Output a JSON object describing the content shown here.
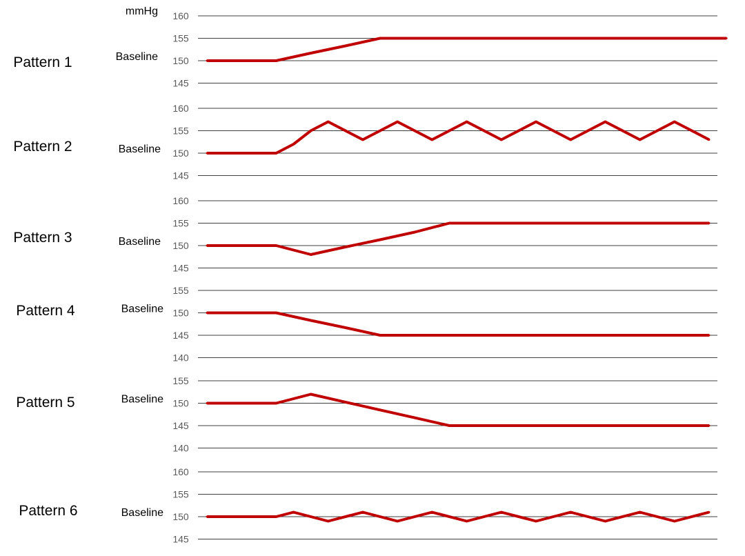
{
  "chart_data": [
    {
      "type": "line",
      "title": "Pattern 1",
      "unit_label": "mmHg",
      "baseline_label": "Baseline",
      "baseline_value": 150,
      "yticks": [
        160,
        155,
        150,
        145
      ],
      "ylim": [
        145,
        160
      ],
      "x": [
        0,
        1,
        2,
        3,
        4,
        5,
        6,
        7,
        8,
        9,
        10,
        11,
        12,
        13,
        14,
        15
      ],
      "series": [
        {
          "values": [
            150,
            150,
            150,
            151.7,
            153.3,
            155,
            155,
            155,
            155,
            155,
            155,
            155,
            155,
            155,
            155,
            155
          ]
        }
      ]
    },
    {
      "type": "line",
      "title": "Pattern 2",
      "baseline_label": "Baseline",
      "baseline_value": 150,
      "yticks": [
        160,
        155,
        150,
        145
      ],
      "ylim": [
        145,
        160
      ],
      "x": [
        0,
        2,
        2.5,
        3,
        3.5,
        4.5,
        5.5,
        6.5,
        7.5,
        8.5,
        9.5,
        10.5,
        11.5,
        12.5,
        13.5,
        14.5
      ],
      "series": [
        {
          "values": [
            150,
            150,
            152,
            155,
            157,
            153,
            157,
            153,
            157,
            153,
            157,
            153,
            157,
            153,
            157,
            153
          ]
        }
      ]
    },
    {
      "type": "line",
      "title": "Pattern 3",
      "baseline_label": "Baseline",
      "baseline_value": 150,
      "yticks": [
        160,
        155,
        150,
        145
      ],
      "ylim": [
        145,
        160
      ],
      "x": [
        0,
        2,
        3,
        4,
        5,
        6,
        7,
        8,
        9,
        10,
        11,
        12,
        13,
        14,
        14.5
      ],
      "series": [
        {
          "values": [
            150,
            150,
            148,
            149.7,
            151.3,
            153,
            155,
            155,
            155,
            155,
            155,
            155,
            155,
            155,
            155
          ]
        }
      ]
    },
    {
      "type": "line",
      "title": "Pattern 4",
      "baseline_label": "Baseline",
      "baseline_value": 150,
      "yticks": [
        155,
        150,
        145,
        140
      ],
      "ylim": [
        140,
        155
      ],
      "x": [
        0,
        2,
        3,
        4,
        5,
        6,
        7,
        8,
        9,
        10,
        11,
        12,
        13,
        14,
        14.5
      ],
      "series": [
        {
          "values": [
            150,
            150,
            148.3,
            146.7,
            145,
            145,
            145,
            145,
            145,
            145,
            145,
            145,
            145,
            145,
            145
          ]
        }
      ]
    },
    {
      "type": "line",
      "title": "Pattern 5",
      "baseline_label": "Baseline",
      "baseline_value": 150,
      "yticks": [
        155,
        150,
        145,
        140
      ],
      "ylim": [
        140,
        155
      ],
      "x": [
        0,
        2,
        3,
        4,
        5,
        6,
        7,
        8,
        9,
        10,
        11,
        12,
        13,
        14,
        14.5
      ],
      "series": [
        {
          "values": [
            150,
            150,
            152,
            150.25,
            148.5,
            146.75,
            145,
            145,
            145,
            145,
            145,
            145,
            145,
            145,
            145
          ]
        }
      ]
    },
    {
      "type": "line",
      "title": "Pattern 6",
      "baseline_label": "Baseline",
      "baseline_value": 150,
      "yticks": [
        160,
        155,
        150,
        145
      ],
      "ylim": [
        145,
        160
      ],
      "x": [
        0,
        2,
        2.5,
        3.5,
        4.5,
        5.5,
        6.5,
        7.5,
        8.5,
        9.5,
        10.5,
        11.5,
        12.5,
        13.5,
        14.5
      ],
      "series": [
        {
          "values": [
            150,
            150,
            151,
            149,
            151,
            149,
            151,
            149,
            151,
            149,
            151,
            149,
            151,
            149,
            151
          ]
        }
      ]
    }
  ],
  "colors": {
    "line": "#C00000",
    "grid": "#3f3f3f",
    "tick_text": "#595959"
  }
}
